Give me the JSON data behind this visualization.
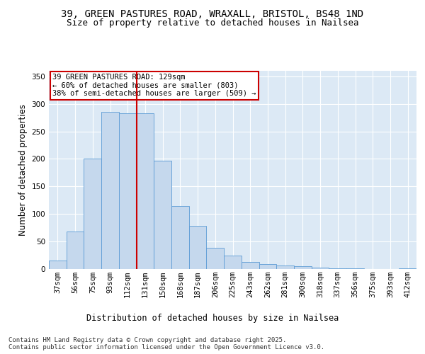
{
  "title_line1": "39, GREEN PASTURES ROAD, WRAXALL, BRISTOL, BS48 1ND",
  "title_line2": "Size of property relative to detached houses in Nailsea",
  "xlabel": "Distribution of detached houses by size in Nailsea",
  "ylabel": "Number of detached properties",
  "categories": [
    "37sqm",
    "56sqm",
    "75sqm",
    "93sqm",
    "112sqm",
    "131sqm",
    "150sqm",
    "168sqm",
    "187sqm",
    "206sqm",
    "225sqm",
    "243sqm",
    "262sqm",
    "281sqm",
    "300sqm",
    "318sqm",
    "337sqm",
    "356sqm",
    "375sqm",
    "393sqm",
    "412sqm"
  ],
  "bar_values": [
    15,
    68,
    200,
    285,
    283,
    283,
    197,
    115,
    78,
    38,
    25,
    13,
    9,
    6,
    5,
    2,
    1,
    1,
    0,
    0,
    1
  ],
  "bar_color": "#c5d8ed",
  "bar_edge_color": "#5b9bd5",
  "vline_color": "#cc0000",
  "annotation_text": "39 GREEN PASTURES ROAD: 129sqm\n← 60% of detached houses are smaller (803)\n38% of semi-detached houses are larger (509) →",
  "annotation_box_color": "#cc0000",
  "ylim": [
    0,
    360
  ],
  "yticks": [
    0,
    50,
    100,
    150,
    200,
    250,
    300,
    350
  ],
  "plot_bg_color": "#dce9f5",
  "fig_bg_color": "#ffffff",
  "grid_color": "#ffffff",
  "footer": "Contains HM Land Registry data © Crown copyright and database right 2025.\nContains public sector information licensed under the Open Government Licence v3.0.",
  "title_fontsize": 10,
  "subtitle_fontsize": 9,
  "axis_label_fontsize": 8.5,
  "tick_fontsize": 7.5,
  "footer_fontsize": 6.5,
  "annotation_fontsize": 7.5
}
